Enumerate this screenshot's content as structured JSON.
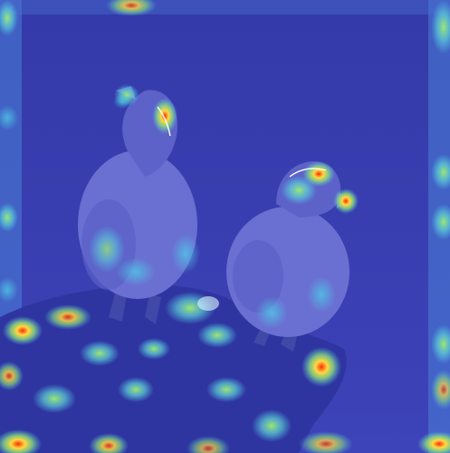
{
  "image": {
    "kind": "heatmap-overlay-photo",
    "subject_icons": [
      "bird-icon",
      "bird-icon",
      "rock-icon"
    ],
    "colors": {
      "background": "#3a3fb0",
      "background_dark": "#2a2f8f",
      "bird_body": "#6a6fd2",
      "bird_shadow": "#4a4fb0",
      "rock": "#3137a0",
      "heat_low": "#4fc7e6",
      "heat_mid": "#8fe07a",
      "heat_high": "#ffd93d",
      "heat_peak": "#ff3b1f"
    }
  }
}
